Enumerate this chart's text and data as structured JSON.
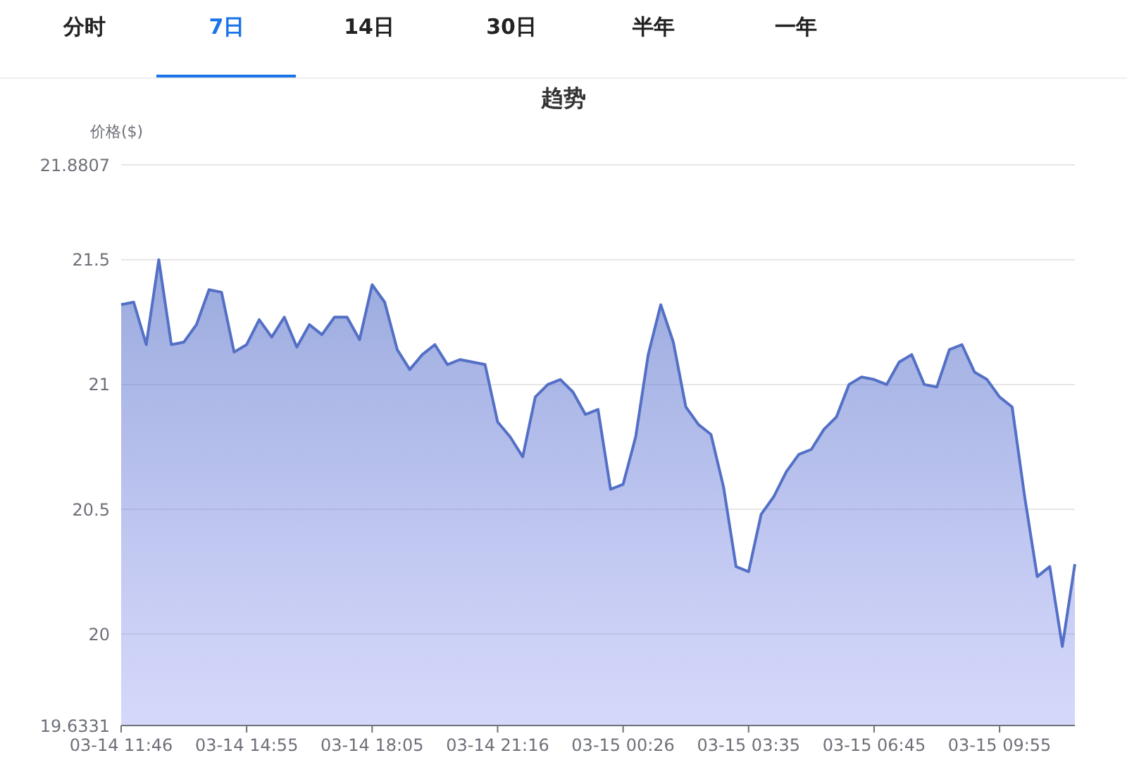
{
  "chart_data": {
    "type": "area",
    "title": "趋势",
    "ylabel": "价格($)",
    "annotations": [
      "分时",
      "7日",
      "14日",
      "30日",
      "半年",
      "一年"
    ],
    "categories": [
      "03-14 11:46",
      null,
      null,
      null,
      null,
      null,
      null,
      null,
      null,
      null,
      "03-14 14:55",
      null,
      null,
      null,
      null,
      null,
      null,
      null,
      null,
      null,
      "03-14 18:05",
      null,
      null,
      null,
      null,
      null,
      null,
      null,
      null,
      null,
      "03-14 21:16",
      null,
      null,
      null,
      null,
      null,
      null,
      null,
      null,
      null,
      "03-15 00:26",
      null,
      null,
      null,
      null,
      null,
      null,
      null,
      null,
      null,
      "03-15 03:35",
      null,
      null,
      null,
      null,
      null,
      null,
      null,
      null,
      null,
      "03-15 06:45",
      null,
      null,
      null,
      null,
      null,
      null,
      null,
      null,
      null,
      "03-15 09:55",
      null,
      null,
      null,
      null,
      null,
      null
    ],
    "series": [
      {
        "color": "#5470c6",
        "values": [
          21.32,
          21.33,
          21.16,
          21.5,
          21.16,
          21.17,
          21.24,
          21.38,
          21.37,
          21.13,
          21.16,
          21.26,
          21.19,
          21.27,
          21.15,
          21.24,
          21.2,
          21.27,
          21.27,
          21.18,
          21.4,
          21.33,
          21.14,
          21.06,
          21.12,
          21.16,
          21.08,
          21.1,
          21.09,
          21.08,
          20.85,
          20.79,
          20.71,
          20.95,
          21.0,
          21.02,
          20.97,
          20.88,
          20.9,
          20.58,
          20.6,
          20.79,
          21.12,
          21.32,
          21.17,
          20.91,
          20.84,
          20.8,
          20.59,
          20.27,
          20.25,
          20.48,
          20.55,
          20.65,
          20.72,
          20.74,
          20.82,
          20.87,
          21.0,
          21.03,
          21.02,
          21.0,
          21.09,
          21.12,
          21.0,
          20.99,
          21.14,
          21.16,
          21.05,
          21.02,
          20.95,
          20.91,
          20.55,
          20.23,
          20.27,
          19.95,
          20.28
        ]
      }
    ],
    "ylim": [
      19.6331,
      21.8807
    ],
    "yticks": [
      19.6331,
      20,
      20.5,
      21,
      21.5,
      21.8807
    ],
    "grid": "y",
    "legend": false
  }
}
